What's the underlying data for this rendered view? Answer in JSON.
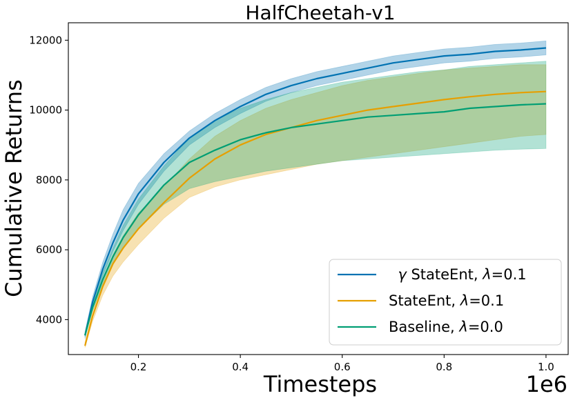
{
  "chart_data": {
    "type": "line",
    "title": "HalfCheetah-v1",
    "xlabel": "Timesteps",
    "ylabel": "Cumulative Returns",
    "x_offset_label": "1e6",
    "xlim": [
      0.0624,
      1.0435
    ],
    "ylim": [
      3000,
      12500
    ],
    "xticks": [
      0.2,
      0.4,
      0.6,
      0.8,
      1.0
    ],
    "xtick_labels": [
      "0.2",
      "0.4",
      "0.6",
      "0.8",
      "1.0"
    ],
    "yticks": [
      4000,
      6000,
      8000,
      10000,
      12000
    ],
    "ytick_labels": [
      "4000",
      "6000",
      "8000",
      "10000",
      "12000"
    ],
    "grid": false,
    "legend_position": "lower-right",
    "series": [
      {
        "name": "γ StateEnt, λ=0.1",
        "legend_parts": [
          "γ",
          "StateEnt, ",
          "λ",
          "=0.1"
        ],
        "color": "#0072B2",
        "x": [
          0.095,
          0.11,
          0.13,
          0.15,
          0.17,
          0.2,
          0.25,
          0.3,
          0.35,
          0.4,
          0.45,
          0.5,
          0.55,
          0.6,
          0.65,
          0.7,
          0.75,
          0.8,
          0.85,
          0.9,
          0.95,
          1.0
        ],
        "mean": [
          3550,
          4500,
          5450,
          6200,
          6850,
          7600,
          8500,
          9200,
          9700,
          10100,
          10450,
          10700,
          10900,
          11050,
          11200,
          11350,
          11450,
          11550,
          11600,
          11680,
          11720,
          11780
        ],
        "lower": [
          3450,
          4350,
          5250,
          5950,
          6550,
          7300,
          8250,
          9000,
          9500,
          9900,
          10250,
          10500,
          10700,
          10850,
          11000,
          11150,
          11250,
          11350,
          11400,
          11480,
          11520,
          11580
        ],
        "upper": [
          3650,
          4650,
          5650,
          6450,
          7150,
          7900,
          8750,
          9400,
          9900,
          10300,
          10650,
          10900,
          11100,
          11250,
          11400,
          11550,
          11650,
          11750,
          11800,
          11880,
          11920,
          11980
        ]
      },
      {
        "name": "StateEnt, λ=0.1",
        "legend_parts": [
          "",
          "StateEnt, ",
          "λ",
          "=0.1"
        ],
        "color": "#E69F00",
        "x": [
          0.095,
          0.11,
          0.13,
          0.15,
          0.17,
          0.2,
          0.25,
          0.3,
          0.35,
          0.4,
          0.45,
          0.5,
          0.55,
          0.6,
          0.65,
          0.7,
          0.75,
          0.8,
          0.85,
          0.9,
          0.95,
          1.0
        ],
        "mean": [
          3250,
          4100,
          4950,
          5600,
          6050,
          6600,
          7350,
          8050,
          8600,
          9000,
          9300,
          9500,
          9700,
          9850,
          10000,
          10100,
          10200,
          10300,
          10380,
          10450,
          10500,
          10530
        ],
        "lower": [
          3200,
          3950,
          4700,
          5250,
          5650,
          6150,
          6900,
          7500,
          7800,
          8000,
          8150,
          8300,
          8450,
          8550,
          8650,
          8750,
          8850,
          8950,
          9050,
          9150,
          9250,
          9300
        ],
        "upper": [
          3350,
          4250,
          5150,
          5850,
          6400,
          7050,
          7800,
          8600,
          9250,
          9700,
          10050,
          10300,
          10500,
          10700,
          10850,
          10950,
          11050,
          11150,
          11200,
          11250,
          11300,
          11300
        ]
      },
      {
        "name": "Baseline, λ=0.0",
        "legend_parts": [
          "",
          "Baseline, ",
          "λ",
          "=0.0"
        ],
        "color": "#009E73",
        "x": [
          0.095,
          0.11,
          0.13,
          0.15,
          0.17,
          0.2,
          0.25,
          0.3,
          0.35,
          0.4,
          0.45,
          0.5,
          0.55,
          0.6,
          0.65,
          0.7,
          0.75,
          0.8,
          0.85,
          0.9,
          0.95,
          1.0
        ],
        "mean": [
          3550,
          4350,
          5150,
          5800,
          6350,
          7000,
          7850,
          8500,
          8850,
          9150,
          9350,
          9500,
          9600,
          9700,
          9800,
          9850,
          9900,
          9950,
          10050,
          10100,
          10150,
          10180
        ],
        "lower": [
          3500,
          4250,
          5000,
          5600,
          6050,
          6600,
          7300,
          7750,
          7950,
          8100,
          8250,
          8350,
          8450,
          8550,
          8600,
          8650,
          8700,
          8750,
          8800,
          8850,
          8880,
          8900
        ],
        "upper": [
          3600,
          4500,
          5350,
          6050,
          6700,
          7450,
          8400,
          9200,
          9700,
          10050,
          10300,
          10500,
          10650,
          10800,
          10900,
          11000,
          11100,
          11150,
          11250,
          11300,
          11350,
          11400
        ]
      }
    ]
  }
}
